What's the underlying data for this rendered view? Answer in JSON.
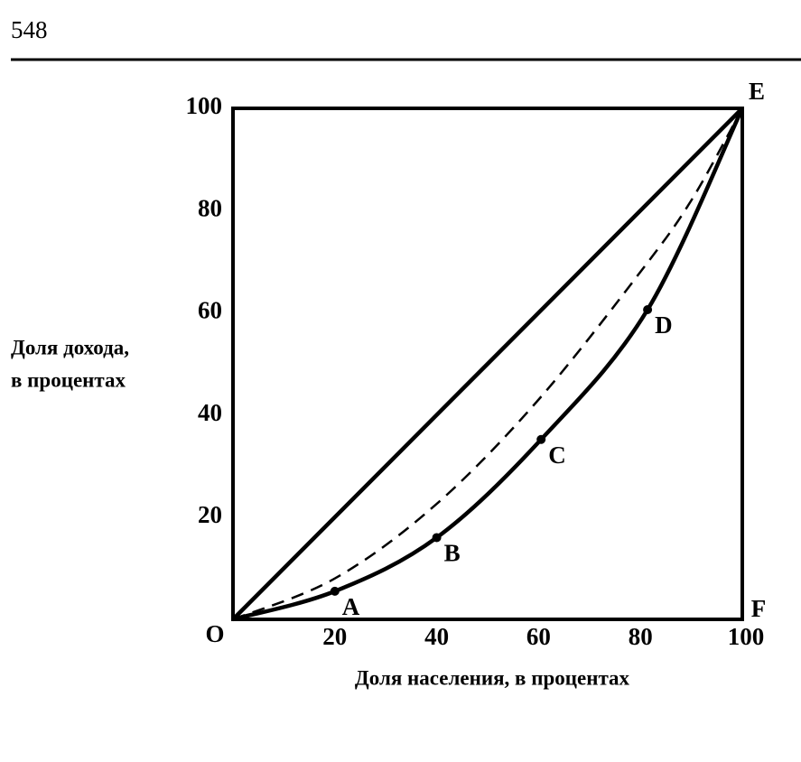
{
  "page_number": "548",
  "chart_data": {
    "type": "line",
    "xlabel": "Доля населения, в процентах",
    "ylabel": [
      "Доля дохода,",
      "в процентах"
    ],
    "xlim": [
      0,
      100
    ],
    "ylim": [
      0,
      100
    ],
    "xticks": [
      20,
      40,
      60,
      80,
      100
    ],
    "yticks": [
      20,
      40,
      60,
      80,
      100
    ],
    "grid": false,
    "corner_labels": [
      "O",
      "E",
      "F"
    ],
    "point_labels": [
      "A",
      "B",
      "C",
      "D"
    ],
    "series": [
      {
        "x": [
          0,
          100
        ],
        "values": [
          0,
          100
        ],
        "color": "#000000",
        "dashed": false,
        "markers": false
      },
      {
        "x": [
          0,
          20,
          40,
          60,
          80,
          90,
          100
        ],
        "values": [
          0,
          8,
          22.6,
          43,
          68,
          82,
          100
        ],
        "color": "#000000",
        "dashed": true,
        "markers": false
      },
      {
        "x": [
          0,
          20,
          40,
          60.5,
          81.4,
          100
        ],
        "values": [
          0,
          5.5,
          16,
          35.2,
          60.6,
          100
        ],
        "color": "#000000",
        "dashed": false,
        "markers": true
      }
    ]
  }
}
